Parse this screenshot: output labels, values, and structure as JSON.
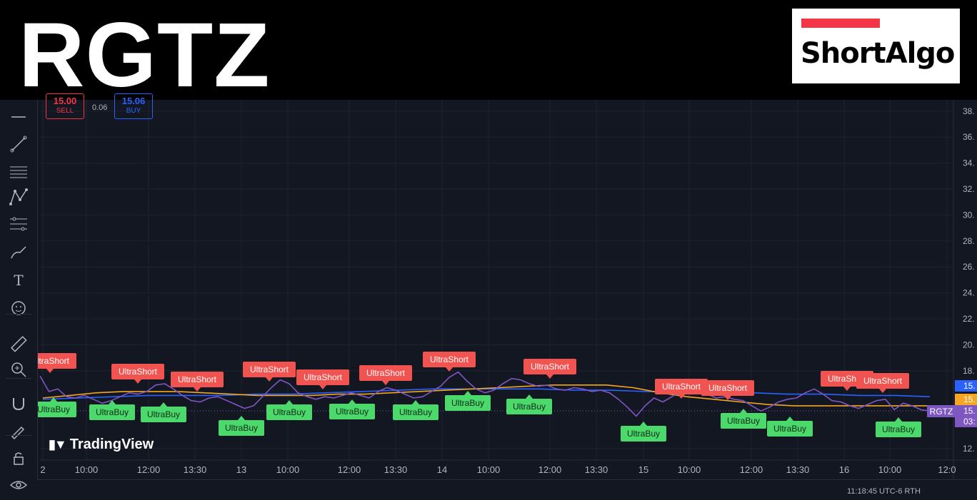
{
  "header": {
    "ticker": "RGTZ",
    "brand": "ShortAlgo",
    "brand_bar_color": "#f23645"
  },
  "trade_panel": {
    "sell_price": "15.00",
    "sell_label": "SELL",
    "spread": "0.06",
    "buy_price": "15.06",
    "buy_label": "BUY"
  },
  "watermark": "TradingView",
  "bottom_bar": {
    "timestamp": "11:18:45 UTC-6  RTH"
  },
  "toolbar": [
    "crosshair-icon",
    "trendline-icon",
    "fib-icon",
    "pattern-icon",
    "forecast-icon",
    "brush-icon",
    "text-icon",
    "emoji-icon",
    "ruler-icon",
    "zoom-icon",
    "magnet-icon",
    "lock-draw-icon",
    "lock-icon",
    "eye-icon"
  ],
  "colors": {
    "price_line": "#7e57c2",
    "ma_fast": "#f5a623",
    "ma_slow": "#2962ff",
    "short_label": "#f05350",
    "buy_label": "#4cd96b",
    "bg": "#131722"
  },
  "chart_data": {
    "type": "line",
    "symbol": "RGTZ",
    "y_ticks": [
      "38.",
      "36.",
      "34.",
      "32.",
      "30.",
      "28.",
      "26.",
      "24.",
      "22.",
      "20.",
      "18.",
      "12."
    ],
    "ylim": [
      11.5,
      39
    ],
    "x_ticks": [
      "2",
      "10:00",
      "12:00",
      "13:30",
      "13",
      "10:00",
      "12:00",
      "13:30",
      "14",
      "10:00",
      "12:00",
      "13:30",
      "15",
      "10:00",
      "12:00",
      "13:30",
      "16",
      "10:00",
      "12:0"
    ],
    "price_axis_labels": [
      {
        "text": "15.",
        "color": "#2962ff"
      },
      {
        "text": "15.",
        "color": "#f5a623"
      },
      {
        "text": "15.",
        "color": "#7e57c2"
      },
      {
        "text": "03:",
        "color": "#7e57c2"
      }
    ],
    "last_label": "RGTZ",
    "series": [
      {
        "name": "RGTZ",
        "color": "#7e57c2",
        "values": [
          17.6,
          16.4,
          16.6,
          16.0,
          15.9,
          16.1,
          15.8,
          15.5,
          15.7,
          16.0,
          16.3,
          16.2,
          16.4,
          16.9,
          17.0,
          16.6,
          16.1,
          15.7,
          15.6,
          15.9,
          16.0,
          15.7,
          15.4,
          15.1,
          15.3,
          16.0,
          16.7,
          17.3,
          17.0,
          16.3,
          16.0,
          15.8,
          16.0,
          15.9,
          16.1,
          16.3,
          16.1,
          15.9,
          16.4,
          16.7,
          16.5,
          16.2,
          15.9,
          16.0,
          16.4,
          16.8,
          17.5,
          17.9,
          17.2,
          16.6,
          16.3,
          16.5,
          17.0,
          17.4,
          17.3,
          17.0,
          16.8,
          16.9,
          16.6,
          16.5,
          16.7,
          16.6,
          16.4,
          16.5,
          16.3,
          15.8,
          15.2,
          14.5,
          15.3,
          15.9,
          15.6,
          16.0,
          16.4,
          16.2,
          16.4,
          16.2,
          15.9,
          16.0,
          15.8,
          15.7,
          15.3,
          14.9,
          15.2,
          15.6,
          15.8,
          15.9,
          16.3,
          16.6,
          16.2,
          15.7,
          15.6,
          15.3,
          15.1,
          15.4,
          15.7,
          15.8,
          15.0,
          15.5,
          15.3,
          15.0,
          14.9
        ]
      },
      {
        "name": "",
        "color": "#f5a623",
        "values": [
          15.9,
          16.1,
          16.3,
          16.4,
          16.4,
          16.4,
          16.3,
          16.2,
          16.1,
          16.1,
          16.1,
          16.2,
          16.2,
          16.3,
          16.4,
          16.5,
          16.6,
          16.7,
          16.8,
          16.9,
          16.9,
          16.9,
          16.7,
          16.3,
          16.0,
          15.8,
          15.6,
          15.4,
          15.3,
          15.3,
          15.3,
          15.3,
          15.3,
          15.3
        ]
      },
      {
        "name": "",
        "color": "#2962ff",
        "values": [
          15.8,
          15.9,
          16.0,
          16.1,
          16.1,
          16.1,
          16.2,
          16.2,
          16.3,
          16.4,
          16.5,
          16.6,
          16.6,
          16.6,
          16.6,
          16.5,
          16.5,
          16.4,
          16.4,
          16.3,
          16.3,
          16.2,
          16.2,
          16.1,
          16.1,
          16.0
        ]
      }
    ],
    "signals": [
      {
        "text": "UltraShort",
        "type": "short",
        "at": 0.0,
        "value": 17.6
      },
      {
        "text": "UltraBuy",
        "type": "buy",
        "at": 0.02,
        "value": 15.5
      },
      {
        "text": "UltraShort",
        "type": "short",
        "at": 0.107,
        "value": 16.9
      },
      {
        "text": "UltraBuy",
        "type": "buy",
        "at": 0.079,
        "value": 15.6
      },
      {
        "text": "UltraBuy",
        "type": "buy",
        "at": 0.135,
        "value": 15.5
      },
      {
        "text": "UltraShort",
        "type": "short",
        "at": 0.172,
        "value": 16.4
      },
      {
        "text": "UltraBuy",
        "type": "buy",
        "at": 0.222,
        "value": 15.1
      },
      {
        "text": "UltraShort",
        "type": "short",
        "at": 0.25,
        "value": 17.0
      },
      {
        "text": "UltraBuy",
        "type": "buy",
        "at": 0.275,
        "value": 15.9
      },
      {
        "text": "UltraShort",
        "type": "short",
        "at": 0.31,
        "value": 16.4
      },
      {
        "text": "UltraBuy",
        "type": "buy",
        "at": 0.344,
        "value": 15.9
      },
      {
        "text": "UltraShort",
        "type": "short",
        "at": 0.378,
        "value": 16.7
      },
      {
        "text": "UltraBuy",
        "type": "buy",
        "at": 0.412,
        "value": 15.9
      },
      {
        "text": "UltraShort",
        "type": "short",
        "at": 0.448,
        "value": 17.9
      },
      {
        "text": "UltraBuy",
        "type": "buy",
        "at": 0.473,
        "value": 16.5
      },
      {
        "text": "UltraBuy",
        "type": "buy",
        "at": 0.541,
        "value": 16.0
      },
      {
        "text": "UltraShort",
        "type": "short",
        "at": 0.558,
        "value": 17.3
      },
      {
        "text": "UltraBuy",
        "type": "buy",
        "at": 0.665,
        "value": 14.5
      },
      {
        "text": "UltraShort",
        "type": "short",
        "at": 0.705,
        "value": 16.4
      },
      {
        "text": "UltraShort",
        "type": "short",
        "at": 0.755,
        "value": 16.2
      },
      {
        "text": "UltraBuy",
        "type": "buy",
        "at": 0.772,
        "value": 15.3
      },
      {
        "text": "UltraBuy",
        "type": "buy",
        "at": 0.823,
        "value": 14.9
      },
      {
        "text": "UltraShort",
        "type": "short",
        "at": 0.883,
        "value": 16.6
      },
      {
        "text": "UltraShort",
        "type": "short",
        "at": 0.925,
        "value": 16.2
      },
      {
        "text": "UltraBuy",
        "type": "buy",
        "at": 0.937,
        "value": 15.0
      }
    ]
  }
}
